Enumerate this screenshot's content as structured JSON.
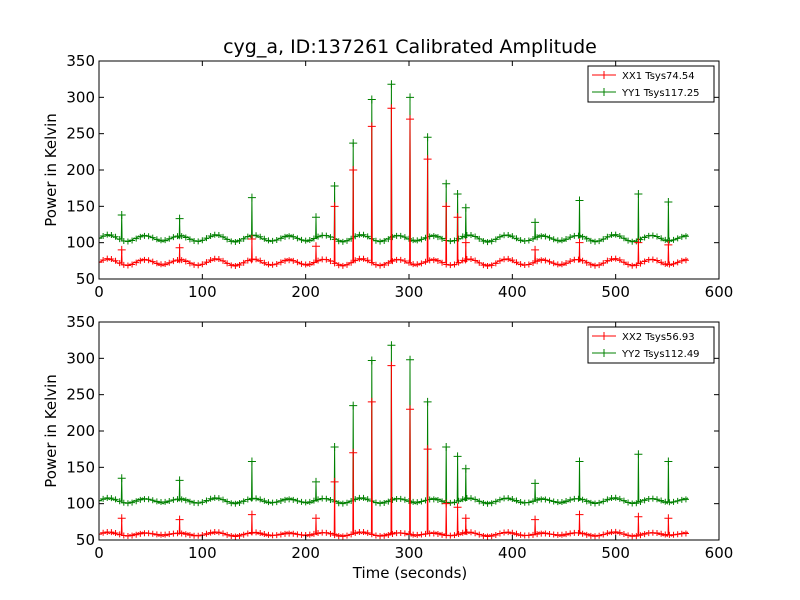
{
  "figure": {
    "title": "cyg_a, ID:137261 Calibrated Amplitude",
    "xlabel": "Time (seconds)"
  },
  "chart_data": [
    {
      "type": "line",
      "title": "cyg_a, ID:137261 Calibrated Amplitude",
      "xlabel": "",
      "ylabel": "Power in Kelvin",
      "xlim": [
        0,
        600
      ],
      "ylim": [
        50,
        350
      ],
      "xticks": [
        0,
        100,
        200,
        300,
        400,
        500,
        600
      ],
      "yticks": [
        50,
        100,
        150,
        200,
        250,
        300,
        350
      ],
      "grid": false,
      "legend": "top-right",
      "series": [
        {
          "name": "XX1 Tsys74.54",
          "color": "#ff0000",
          "baseline": 73,
          "ripple_amplitude": 4,
          "ripple_period": 35,
          "end_x": 570,
          "spikes": [
            [
              22,
              90
            ],
            [
              78,
              93
            ],
            [
              148,
              105
            ],
            [
              210,
              95
            ],
            [
              228,
              150
            ],
            [
              246,
              200
            ],
            [
              264,
              260
            ],
            [
              283,
              285
            ],
            [
              301,
              270
            ],
            [
              318,
              215
            ],
            [
              336,
              150
            ],
            [
              347,
              135
            ],
            [
              355,
              100
            ],
            [
              422,
              90
            ],
            [
              465,
              100
            ],
            [
              522,
              100
            ],
            [
              551,
              97
            ]
          ]
        },
        {
          "name": "YY1 Tsys117.25",
          "color": "#008000",
          "baseline": 106,
          "ripple_amplitude": 4,
          "ripple_period": 35,
          "end_x": 570,
          "spikes": [
            [
              22,
              138
            ],
            [
              78,
              133
            ],
            [
              148,
              162
            ],
            [
              210,
              135
            ],
            [
              228,
              178
            ],
            [
              246,
              237
            ],
            [
              264,
              297
            ],
            [
              283,
              318
            ],
            [
              301,
              300
            ],
            [
              318,
              245
            ],
            [
              336,
              181
            ],
            [
              347,
              167
            ],
            [
              355,
              148
            ],
            [
              422,
              128
            ],
            [
              465,
              158
            ],
            [
              522,
              167
            ],
            [
              551,
              156
            ]
          ]
        }
      ]
    },
    {
      "type": "line",
      "xlabel": "Time (seconds)",
      "ylabel": "Power in Kelvin",
      "xlim": [
        0,
        600
      ],
      "ylim": [
        50,
        350
      ],
      "xticks": [
        0,
        100,
        200,
        300,
        400,
        500,
        600
      ],
      "yticks": [
        50,
        100,
        150,
        200,
        250,
        300,
        350
      ],
      "grid": false,
      "legend": "top-right",
      "series": [
        {
          "name": "XX2 Tsys56.93",
          "color": "#ff0000",
          "baseline": 58,
          "ripple_amplitude": 2,
          "ripple_period": 35,
          "end_x": 570,
          "spikes": [
            [
              22,
              80
            ],
            [
              78,
              78
            ],
            [
              148,
              85
            ],
            [
              210,
              80
            ],
            [
              228,
              130
            ],
            [
              246,
              170
            ],
            [
              264,
              240
            ],
            [
              283,
              290
            ],
            [
              301,
              230
            ],
            [
              318,
              175
            ],
            [
              336,
              100
            ],
            [
              347,
              95
            ],
            [
              355,
              80
            ],
            [
              422,
              78
            ],
            [
              465,
              85
            ],
            [
              522,
              82
            ],
            [
              551,
              80
            ]
          ]
        },
        {
          "name": "YY2 Tsys112.49",
          "color": "#008000",
          "baseline": 104,
          "ripple_amplitude": 3,
          "ripple_period": 35,
          "end_x": 570,
          "spikes": [
            [
              22,
              135
            ],
            [
              78,
              132
            ],
            [
              148,
              158
            ],
            [
              210,
              130
            ],
            [
              228,
              178
            ],
            [
              246,
              235
            ],
            [
              264,
              297
            ],
            [
              283,
              318
            ],
            [
              301,
              298
            ],
            [
              318,
              240
            ],
            [
              336,
              178
            ],
            [
              347,
              165
            ],
            [
              355,
              148
            ],
            [
              422,
              128
            ],
            [
              465,
              158
            ],
            [
              522,
              168
            ],
            [
              551,
              158
            ]
          ]
        }
      ]
    }
  ]
}
